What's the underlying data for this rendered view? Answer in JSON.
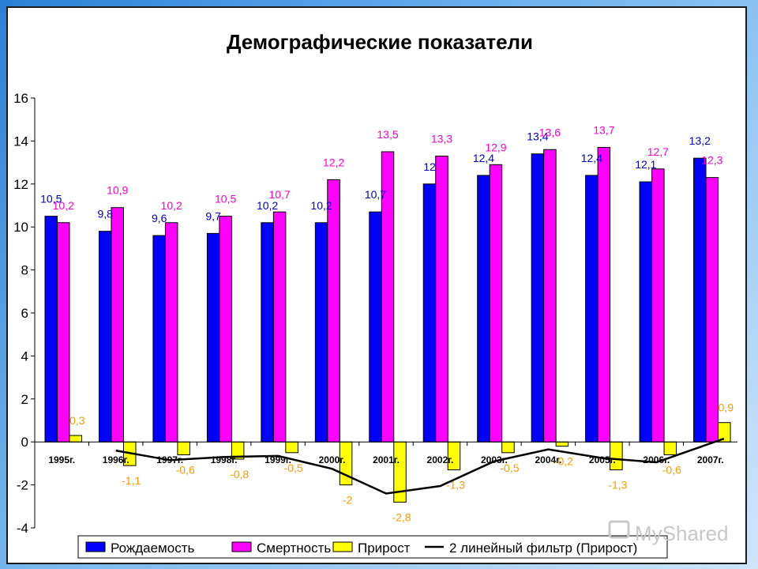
{
  "chart_data": {
    "type": "bar",
    "title": "Демографические показатели",
    "categories": [
      "1995г.",
      "1996г.",
      "1997г.",
      "1998г.",
      "1999г.",
      "2000г.",
      "2001г.",
      "2002г.",
      "2003г.",
      "2004г.",
      "2005г.",
      "2006г.",
      "2007г."
    ],
    "series": [
      {
        "name": "Рождаемость",
        "color": "#0000ff",
        "label_color": "#0000cc",
        "values": [
          10.5,
          9.8,
          9.6,
          9.7,
          10.2,
          10.2,
          10.7,
          12,
          12.4,
          13.4,
          12.4,
          12.1,
          13.2
        ],
        "labels": [
          "10,5",
          "9,8",
          "9,6",
          "9,7",
          "10,2",
          "10,2",
          "10,7",
          "12",
          "12,4",
          "13,4",
          "12,4",
          "12,1",
          "13,2"
        ]
      },
      {
        "name": "Смертность",
        "color": "#ff00ff",
        "label_color": "#ff00cc",
        "values": [
          10.2,
          10.9,
          10.2,
          10.5,
          10.7,
          12.2,
          13.5,
          13.3,
          12.9,
          13.6,
          13.7,
          12.7,
          12.3
        ],
        "labels": [
          "10,2",
          "10,9",
          "10,2",
          "10,5",
          "10,7",
          "12,2",
          "13,5",
          "13,3",
          "12,9",
          "13,6",
          "13,7",
          "12,7",
          "12,3"
        ]
      },
      {
        "name": "Прирост",
        "color": "#ffff00",
        "label_color": "#ff9900",
        "values": [
          0.3,
          -1.1,
          -0.6,
          -0.8,
          -0.5,
          -2,
          -2.8,
          -1.3,
          -0.5,
          -0.2,
          -1.3,
          -0.6,
          0.9
        ],
        "labels": [
          "0,3",
          "-1,1",
          "-0,6",
          "-0,8",
          "-0,5",
          "-2",
          "-2,8",
          "-1,3",
          "-0,5",
          "-0,2",
          "-1,3",
          "-0,6",
          "0,9"
        ]
      }
    ],
    "trendline": {
      "name": "2 линейный фильтр (Прирост)",
      "color": "#000000",
      "values": [
        null,
        -0.4,
        -0.85,
        -0.7,
        -0.65,
        -1.25,
        -2.4,
        -2.05,
        -0.9,
        -0.35,
        -0.75,
        -0.95,
        0.15
      ]
    },
    "y_ticks": [
      "16",
      "14",
      "12",
      "10",
      "8",
      "6",
      "4",
      "2",
      "0",
      "-2",
      "-4"
    ],
    "ylim": [
      -4,
      16
    ],
    "grid": false,
    "legend_position": "bottom"
  },
  "watermark": "MyShared"
}
